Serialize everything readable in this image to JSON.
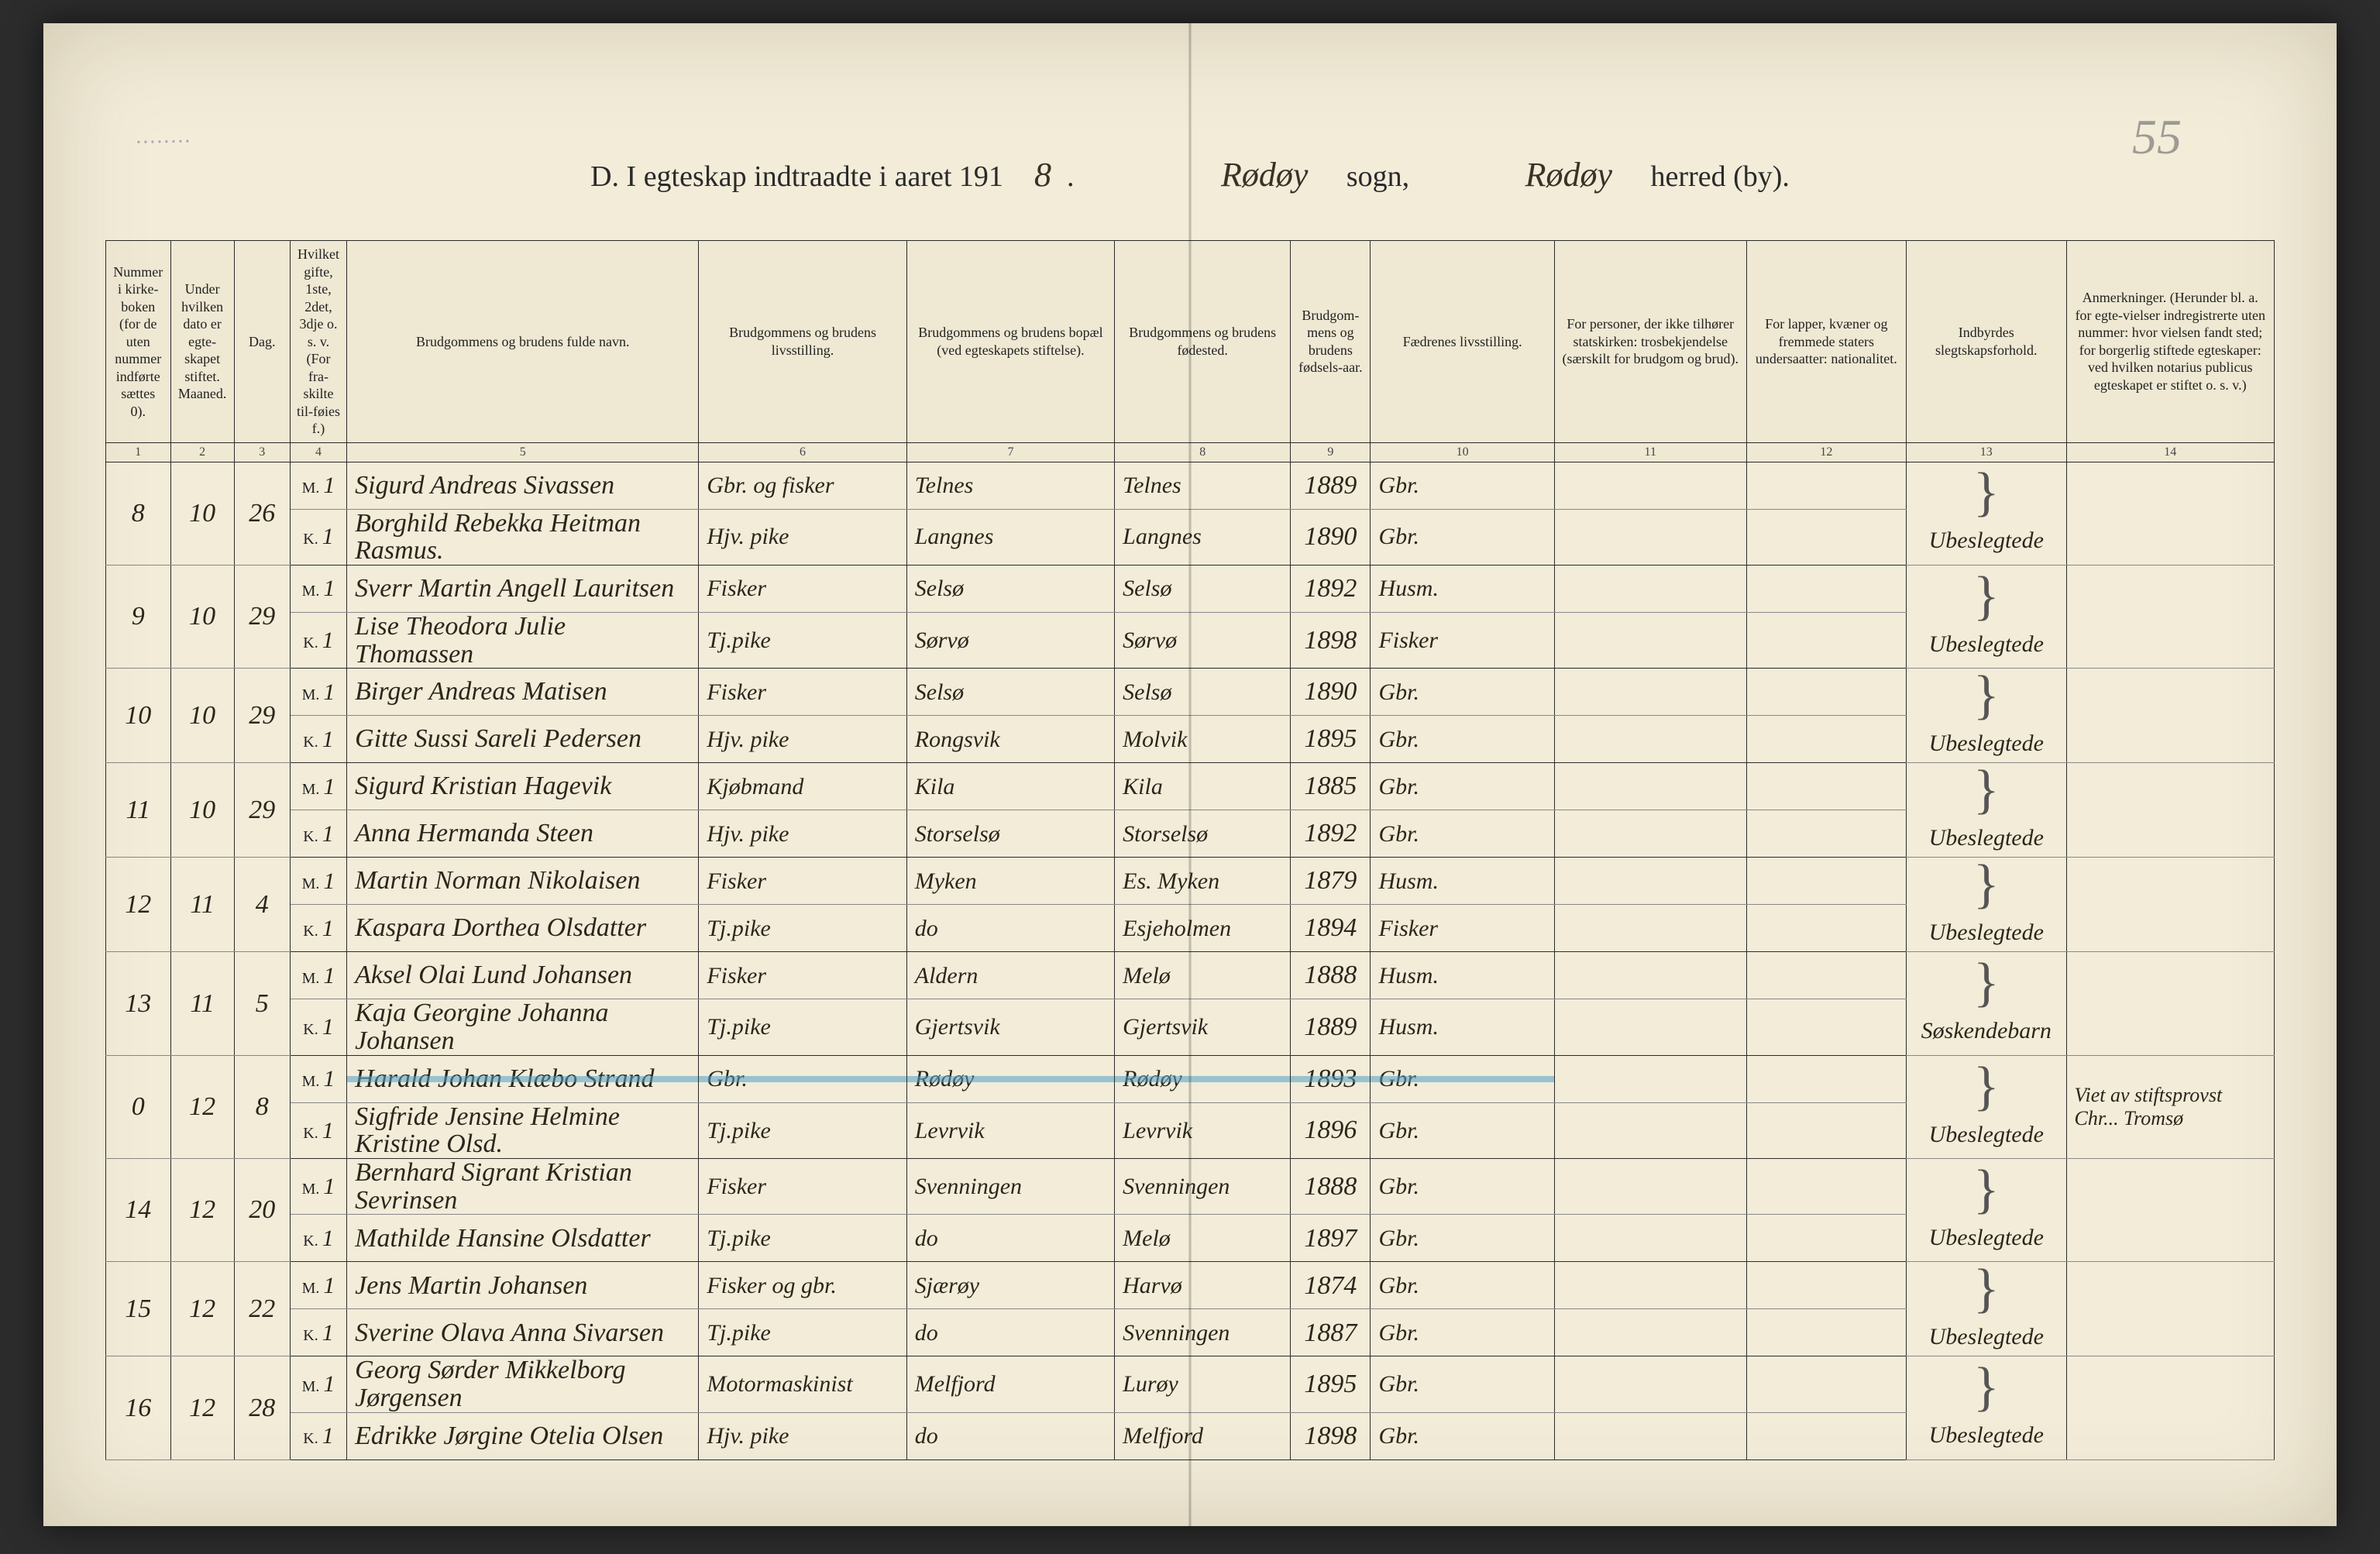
{
  "colors": {
    "paper_bg": "#f2ecd9",
    "ink": "#2b261c",
    "rule": "#2a2a2a",
    "blue_pencil": "#50a0c8",
    "stamp": "#6a4a8a"
  },
  "fonts": {
    "printed": "Georgia, serif",
    "handwriting": "'Brush Script MT', 'Segoe Script', cursive",
    "header_fontsize_pt": 14,
    "body_hand_fontsize_pt": 26
  },
  "page_number_top": "55",
  "rubber_stamp_text": "........",
  "title": {
    "prefix": "D.  I egteskap indtraadte i aaret 191",
    "year_digit_hand": "8",
    "period": ".",
    "sogn_script": "Rødøy",
    "sogn_label": "sogn,",
    "herred_script": "Rødøy",
    "herred_label": "herred (by)."
  },
  "columns": [
    {
      "num": "1",
      "label": "Nummer i kirke-boken (for de uten nummer indførte sættes 0)."
    },
    {
      "num": "2",
      "label": "Under hvilken dato er egte-skapet stiftet.\nMaaned."
    },
    {
      "num": "3",
      "label": "Dag."
    },
    {
      "num": "4",
      "label": "Hvilket gifte, 1ste, 2det, 3dje o. s. v. (For fra-skilte til-føies f.)"
    },
    {
      "num": "5",
      "label": "Brudgommens og brudens fulde navn."
    },
    {
      "num": "6",
      "label": "Brudgommens og brudens livsstilling."
    },
    {
      "num": "7",
      "label": "Brudgommens og brudens bopæl (ved egteskapets stiftelse)."
    },
    {
      "num": "8",
      "label": "Brudgommens og brudens fødested."
    },
    {
      "num": "9",
      "label": "Brudgom-mens og brudens fødsels-aar."
    },
    {
      "num": "10",
      "label": "Fædrenes livsstilling."
    },
    {
      "num": "11",
      "label": "For personer, der ikke tilhører statskirken: trosbekjendelse (særskilt for brudgom og brud)."
    },
    {
      "num": "12",
      "label": "For lapper, kvæner og fremmede staters undersaatter: nationalitet."
    },
    {
      "num": "13",
      "label": "Indbyrdes slegtskapsforhold."
    },
    {
      "num": "14",
      "label": "Anmerkninger. (Herunder bl. a. for egte-vielser indregistrerte uten nummer: hvor vielsen fandt sted; for borgerlig stiftede egteskaper: ved hvilken notarius publicus egteskapet er stiftet o. s. v.)"
    }
  ],
  "entries": [
    {
      "no": "8",
      "month": "10",
      "day": "26",
      "groom": {
        "mk": "M.",
        "g": "1",
        "name": "Sigurd Andreas Sivassen",
        "occ": "Gbr. og fisker",
        "residence": "Telnes",
        "birthplace": "Telnes",
        "year": "1889",
        "father": "Gbr."
      },
      "bride": {
        "mk": "K.",
        "g": "1",
        "name": "Borghild Rebekka Heitman Rasmus.",
        "occ": "Hjv. pike",
        "residence": "Langnes",
        "birthplace": "Langnes",
        "year": "1890",
        "father": "Gbr."
      },
      "kinship": "Ubeslegtede",
      "remarks": ""
    },
    {
      "no": "9",
      "month": "10",
      "day": "29",
      "groom": {
        "mk": "M.",
        "g": "1",
        "name": "Sverr Martin Angell Lauritsen",
        "occ": "Fisker",
        "residence": "Selsø",
        "birthplace": "Selsø",
        "year": "1892",
        "father": "Husm."
      },
      "bride": {
        "mk": "K.",
        "g": "1",
        "name": "Lise Theodora Julie Thomassen",
        "occ": "Tj.pike",
        "residence": "Sørvø",
        "birthplace": "Sørvø",
        "year": "1898",
        "father": "Fisker"
      },
      "kinship": "Ubeslegtede",
      "remarks": ""
    },
    {
      "no": "10",
      "month": "10",
      "day": "29",
      "groom": {
        "mk": "M.",
        "g": "1",
        "name": "Birger Andreas Matisen",
        "occ": "Fisker",
        "residence": "Selsø",
        "birthplace": "Selsø",
        "year": "1890",
        "father": "Gbr."
      },
      "bride": {
        "mk": "K.",
        "g": "1",
        "name": "Gitte Sussi Sareli Pedersen",
        "occ": "Hjv. pike",
        "residence": "Rongsvik",
        "birthplace": "Molvik",
        "year": "1895",
        "father": "Gbr."
      },
      "kinship": "Ubeslegtede",
      "remarks": ""
    },
    {
      "no": "11",
      "month": "10",
      "day": "29",
      "groom": {
        "mk": "M.",
        "g": "1",
        "name": "Sigurd Kristian Hagevik",
        "occ": "Kjøbmand",
        "residence": "Kila",
        "birthplace": "Kila",
        "year": "1885",
        "father": "Gbr."
      },
      "bride": {
        "mk": "K.",
        "g": "1",
        "name": "Anna Hermanda Steen",
        "occ": "Hjv. pike",
        "residence": "Storselsø",
        "birthplace": "Storselsø",
        "year": "1892",
        "father": "Gbr."
      },
      "kinship": "Ubeslegtede",
      "remarks": ""
    },
    {
      "no": "12",
      "month": "11",
      "day": "4",
      "groom": {
        "mk": "M.",
        "g": "1",
        "name": "Martin Norman Nikolaisen",
        "occ": "Fisker",
        "residence": "Myken",
        "birthplace": "Es. Myken",
        "year": "1879",
        "father": "Husm."
      },
      "bride": {
        "mk": "K.",
        "g": "1",
        "name": "Kaspara Dorthea Olsdatter",
        "occ": "Tj.pike",
        "residence": "do",
        "birthplace": "Esjeholmen",
        "year": "1894",
        "father": "Fisker"
      },
      "kinship": "Ubeslegtede",
      "remarks": ""
    },
    {
      "no": "13",
      "month": "11",
      "day": "5",
      "groom": {
        "mk": "M.",
        "g": "1",
        "name": "Aksel Olai Lund Johansen",
        "occ": "Fisker",
        "residence": "Aldern",
        "birthplace": "Melø",
        "year": "1888",
        "father": "Husm."
      },
      "bride": {
        "mk": "K.",
        "g": "1",
        "name": "Kaja Georgine Johanna Johansen",
        "occ": "Tj.pike",
        "residence": "Gjertsvik",
        "birthplace": "Gjertsvik",
        "year": "1889",
        "father": "Husm."
      },
      "kinship": "Søskendebarn",
      "remarks": ""
    },
    {
      "no": "0",
      "month": "12",
      "day": "8",
      "blue": true,
      "groom": {
        "mk": "M.",
        "g": "1",
        "name": "Harald Johan Klæbo Strand",
        "occ": "Gbr.",
        "residence": "Rødøy",
        "birthplace": "Rødøy",
        "year": "1893",
        "father": "Gbr."
      },
      "bride": {
        "mk": "K.",
        "g": "1",
        "name": "Sigfride Jensine Helmine Kristine Olsd.",
        "occ": "Tj.pike",
        "residence": "Levrvik",
        "birthplace": "Levrvik",
        "year": "1896",
        "father": "Gbr."
      },
      "kinship": "Ubeslegtede",
      "remarks": "Viet av stiftsprovst Chr... Tromsø"
    },
    {
      "no": "14",
      "month": "12",
      "day": "20",
      "groom": {
        "mk": "M.",
        "g": "1",
        "name": "Bernhard Sigrant Kristian Sevrinsen",
        "occ": "Fisker",
        "residence": "Svenningen",
        "birthplace": "Svenningen",
        "year": "1888",
        "father": "Gbr."
      },
      "bride": {
        "mk": "K.",
        "g": "1",
        "name": "Mathilde Hansine Olsdatter",
        "occ": "Tj.pike",
        "residence": "do",
        "birthplace": "Melø",
        "year": "1897",
        "father": "Gbr."
      },
      "kinship": "Ubeslegtede",
      "remarks": ""
    },
    {
      "no": "15",
      "month": "12",
      "day": "22",
      "groom": {
        "mk": "M.",
        "g": "1",
        "name": "Jens Martin Johansen",
        "occ": "Fisker og gbr.",
        "residence": "Sjærøy",
        "birthplace": "Harvø",
        "year": "1874",
        "father": "Gbr."
      },
      "bride": {
        "mk": "K.",
        "g": "1",
        "name": "Sverine Olava Anna Sivarsen",
        "occ": "Tj.pike",
        "residence": "do",
        "birthplace": "Svenningen",
        "year": "1887",
        "father": "Gbr."
      },
      "kinship": "Ubeslegtede",
      "remarks": ""
    },
    {
      "no": "16",
      "month": "12",
      "day": "28",
      "groom": {
        "mk": "M.",
        "g": "1",
        "name": "Georg Sørder Mikkelborg Jørgensen",
        "occ": "Motormaskinist",
        "residence": "Melfjord",
        "birthplace": "Lurøy",
        "year": "1895",
        "father": "Gbr."
      },
      "bride": {
        "mk": "K.",
        "g": "1",
        "name": "Edrikke Jørgine Otelia Olsen",
        "occ": "Hjv. pike",
        "residence": "do",
        "birthplace": "Melfjord",
        "year": "1898",
        "father": "Gbr."
      },
      "kinship": "Ubeslegtede",
      "remarks": ""
    }
  ]
}
